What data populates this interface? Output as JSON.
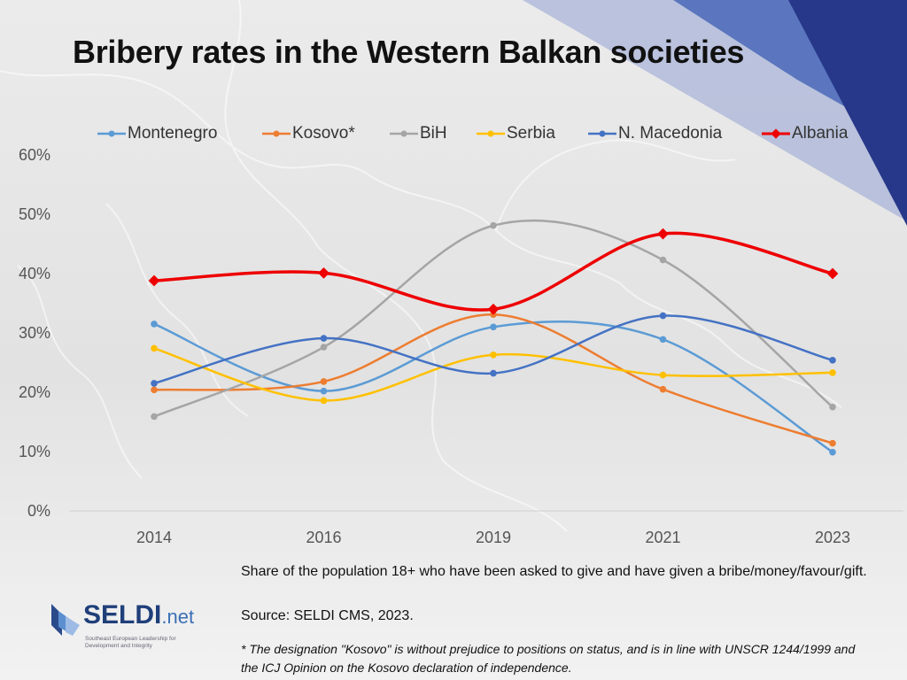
{
  "title": "Bribery rates in the Western Balkan societies",
  "note": "Share of the population 18+ who have been asked to give and have given a bribe/money/favour/gift.",
  "source": "Source: SELDI CMS, 2023.",
  "footnote": "* The designation \"Kosovo\" is without prejudice to positions on status, and is in line with UNSCR 1244/1999 and the ICJ Opinion on the Kosovo declaration of independence.",
  "logo": {
    "name": "SELDI",
    "suffix": ".net",
    "tagline": "Southeast European Leadership for Development and Integrity"
  },
  "colors": {
    "Montenegro": "#5b9bd5",
    "Kosovo*": "#ed7d31",
    "BiH": "#a5a5a5",
    "Serbia": "#ffc000",
    "N. Macedonia": "#4472c4",
    "Albania": "#ee0000"
  },
  "chart_data": {
    "type": "line",
    "title": "Bribery rates in the Western Balkan societies",
    "categories": [
      "2014",
      "2016",
      "2019",
      "2021",
      "2023"
    ],
    "y_ticks": [
      "0%",
      "10%",
      "20%",
      "30%",
      "40%",
      "50%",
      "60%"
    ],
    "ylim": [
      0,
      60
    ],
    "grid": false,
    "smooth": true,
    "legend_position": "top",
    "series": [
      {
        "name": "Montenegro",
        "values": [
          31.5,
          20.2,
          31.0,
          28.9,
          9.9
        ],
        "marker": "circle"
      },
      {
        "name": "Kosovo*",
        "values": [
          20.4,
          21.8,
          33.1,
          20.5,
          11.4
        ],
        "marker": "circle"
      },
      {
        "name": "BiH",
        "values": [
          15.9,
          27.6,
          48.1,
          42.3,
          17.5
        ],
        "marker": "circle"
      },
      {
        "name": "Serbia",
        "values": [
          27.4,
          18.6,
          26.3,
          22.9,
          23.3
        ],
        "marker": "circle"
      },
      {
        "name": "N. Macedonia",
        "values": [
          21.5,
          29.1,
          23.2,
          32.9,
          25.4
        ],
        "marker": "circle"
      },
      {
        "name": "Albania",
        "values": [
          38.8,
          40.1,
          34.0,
          46.7,
          40.0
        ],
        "marker": "diamond"
      }
    ]
  }
}
